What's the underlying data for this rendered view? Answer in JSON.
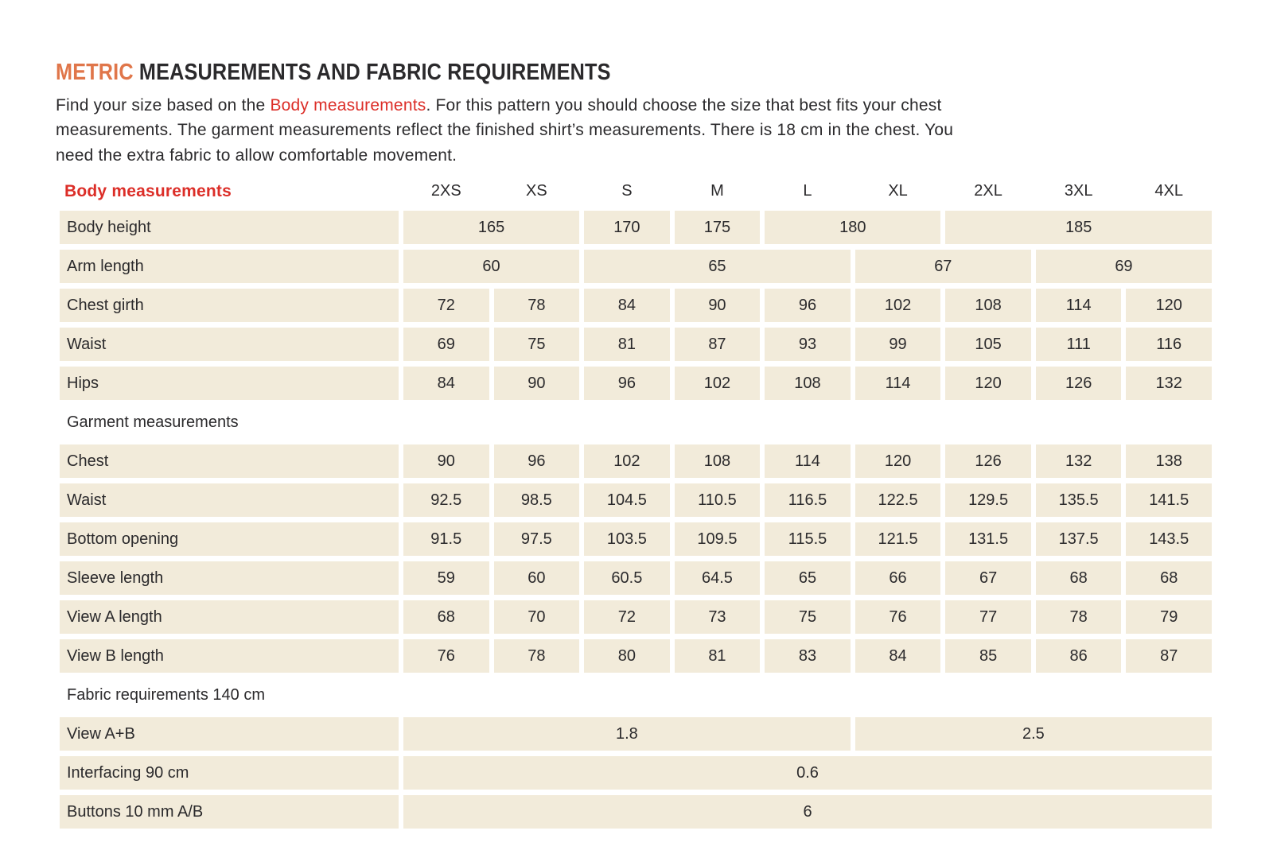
{
  "title": {
    "highlight": "METRIC",
    "rest": " MEASUREMENTS AND FABRIC REQUIREMENTS"
  },
  "intro": {
    "line1_pre": "Find your size based on the ",
    "line1_emphasis": "Body measurements",
    "line1_post": ". For this pattern you should choose the size that best fits your chest",
    "line2": "measurements. The garment measurements reflect the finished shirt’s measurements. There is 18 cm in the chest. You",
    "line3": "need the extra fabric to allow comfortable movement."
  },
  "colors": {
    "accent_orange": "#e0764a",
    "accent_red": "#dc2e28",
    "cell_background": "#f2ebda",
    "text": "#2b2a2c"
  },
  "table": {
    "header_label": "Body measurements",
    "sizes": [
      "2XS",
      "XS",
      "S",
      "M",
      "L",
      "XL",
      "2XL",
      "3XL",
      "4XL"
    ],
    "rows": [
      {
        "type": "data",
        "label": "Body height",
        "cells": [
          {
            "v": "165",
            "span": 2
          },
          {
            "v": "170",
            "span": 1
          },
          {
            "v": "175",
            "span": 1
          },
          {
            "v": "180",
            "span": 2
          },
          {
            "v": "185",
            "span": 3
          }
        ]
      },
      {
        "type": "data",
        "label": "Arm length",
        "cells": [
          {
            "v": "60",
            "span": 2
          },
          {
            "v": "65",
            "span": 3
          },
          {
            "v": "67",
            "span": 2
          },
          {
            "v": "69",
            "span": 2
          }
        ]
      },
      {
        "type": "data",
        "label": "Chest girth",
        "cells": [
          {
            "v": "72"
          },
          {
            "v": "78"
          },
          {
            "v": "84"
          },
          {
            "v": "90"
          },
          {
            "v": "96"
          },
          {
            "v": "102"
          },
          {
            "v": "108"
          },
          {
            "v": "114"
          },
          {
            "v": "120"
          }
        ]
      },
      {
        "type": "data",
        "label": "Waist",
        "cells": [
          {
            "v": "69"
          },
          {
            "v": "75"
          },
          {
            "v": "81"
          },
          {
            "v": "87"
          },
          {
            "v": "93"
          },
          {
            "v": "99"
          },
          {
            "v": "105"
          },
          {
            "v": "111"
          },
          {
            "v": "116"
          }
        ]
      },
      {
        "type": "data",
        "label": "Hips",
        "cells": [
          {
            "v": "84"
          },
          {
            "v": "90"
          },
          {
            "v": "96"
          },
          {
            "v": "102"
          },
          {
            "v": "108"
          },
          {
            "v": "114"
          },
          {
            "v": "120"
          },
          {
            "v": "126"
          },
          {
            "v": "132"
          }
        ]
      },
      {
        "type": "section",
        "label": "Garment measurements"
      },
      {
        "type": "data",
        "label": "Chest",
        "cells": [
          {
            "v": "90"
          },
          {
            "v": "96"
          },
          {
            "v": "102"
          },
          {
            "v": "108"
          },
          {
            "v": "114"
          },
          {
            "v": "120"
          },
          {
            "v": "126"
          },
          {
            "v": "132"
          },
          {
            "v": "138"
          }
        ]
      },
      {
        "type": "data",
        "label": "Waist",
        "cells": [
          {
            "v": "92.5"
          },
          {
            "v": "98.5"
          },
          {
            "v": "104.5"
          },
          {
            "v": "110.5"
          },
          {
            "v": "116.5"
          },
          {
            "v": "122.5"
          },
          {
            "v": "129.5"
          },
          {
            "v": "135.5"
          },
          {
            "v": "141.5"
          }
        ]
      },
      {
        "type": "data",
        "label": "Bottom opening",
        "cells": [
          {
            "v": "91.5"
          },
          {
            "v": "97.5"
          },
          {
            "v": "103.5"
          },
          {
            "v": "109.5"
          },
          {
            "v": "115.5"
          },
          {
            "v": "121.5"
          },
          {
            "v": "131.5"
          },
          {
            "v": "137.5"
          },
          {
            "v": "143.5"
          }
        ]
      },
      {
        "type": "data",
        "label": "Sleeve length",
        "cells": [
          {
            "v": "59"
          },
          {
            "v": "60"
          },
          {
            "v": "60.5"
          },
          {
            "v": "64.5"
          },
          {
            "v": "65"
          },
          {
            "v": "66"
          },
          {
            "v": "67"
          },
          {
            "v": "68"
          },
          {
            "v": "68"
          }
        ]
      },
      {
        "type": "data",
        "label": "View A length",
        "cells": [
          {
            "v": "68"
          },
          {
            "v": "70"
          },
          {
            "v": "72"
          },
          {
            "v": "73"
          },
          {
            "v": "75"
          },
          {
            "v": "76"
          },
          {
            "v": "77"
          },
          {
            "v": "78"
          },
          {
            "v": "79"
          }
        ]
      },
      {
        "type": "data",
        "label": "View B length",
        "cells": [
          {
            "v": "76"
          },
          {
            "v": "78"
          },
          {
            "v": "80"
          },
          {
            "v": "81"
          },
          {
            "v": "83"
          },
          {
            "v": "84"
          },
          {
            "v": "85"
          },
          {
            "v": "86"
          },
          {
            "v": "87"
          }
        ]
      },
      {
        "type": "section",
        "label": "Fabric requirements 140 cm"
      },
      {
        "type": "data",
        "label": "View A+B",
        "cells": [
          {
            "v": "1.8",
            "span": 5
          },
          {
            "v": "2.5",
            "span": 4
          }
        ]
      },
      {
        "type": "data",
        "label": "Interfacing 90 cm",
        "cells": [
          {
            "v": "0.6",
            "span": 9
          }
        ]
      },
      {
        "type": "data",
        "label": "Buttons 10 mm A/B",
        "cells": [
          {
            "v": "6",
            "span": 9
          }
        ]
      }
    ]
  }
}
